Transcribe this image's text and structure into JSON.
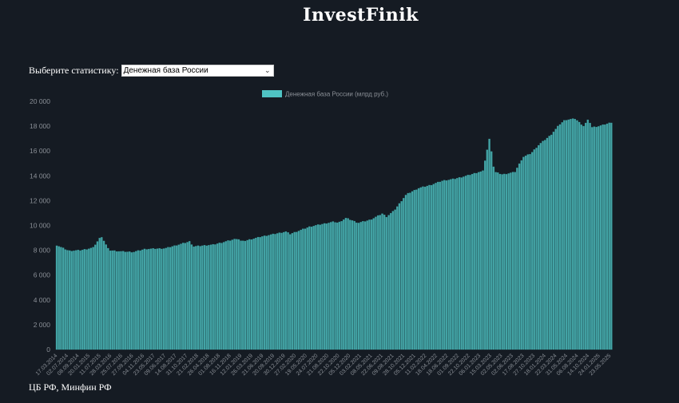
{
  "header": {
    "brand": "InvestFinik"
  },
  "selector": {
    "label": "Выберите статистику:",
    "selected": "Денежная база России"
  },
  "footer": {
    "source": "ЦБ РФ, Минфин РФ"
  },
  "colors": {
    "background": "#151b23",
    "bar": "#4fc3c3",
    "bar_edge": "#3a9e9e",
    "tick_text": "#8a8f96"
  },
  "chart_data": {
    "type": "bar",
    "title": "",
    "xlabel": "",
    "ylabel": "",
    "ylim": [
      0,
      20000
    ],
    "yticks": [
      "0",
      "2 000",
      "4 000",
      "6 000",
      "8 000",
      "10 000",
      "12 000",
      "14 000",
      "16 000",
      "18 000",
      "20 000"
    ],
    "legend": {
      "position": "top-center"
    },
    "series": [
      {
        "name": "Денежная база России (млрд руб.)",
        "points": [
          [
            "2014-03-01",
            8400
          ],
          [
            "2014-06-01",
            7950
          ],
          [
            "2014-09-01",
            8000
          ],
          [
            "2014-12-01",
            8200
          ],
          [
            "2015-02-01",
            9150
          ],
          [
            "2015-04-01",
            8000
          ],
          [
            "2015-07-01",
            7900
          ],
          [
            "2015-10-01",
            7850
          ],
          [
            "2016-01-01",
            8100
          ],
          [
            "2016-06-01",
            8150
          ],
          [
            "2016-12-01",
            8700
          ],
          [
            "2017-01-01",
            8300
          ],
          [
            "2017-06-01",
            8450
          ],
          [
            "2017-12-01",
            8950
          ],
          [
            "2018-01-01",
            8700
          ],
          [
            "2018-06-01",
            9100
          ],
          [
            "2018-12-01",
            9500
          ],
          [
            "2019-01-01",
            9300
          ],
          [
            "2019-06-01",
            9900
          ],
          [
            "2019-12-01",
            10300
          ],
          [
            "2020-01-01",
            10200
          ],
          [
            "2020-03-01",
            10600
          ],
          [
            "2020-06-01",
            10200
          ],
          [
            "2020-09-01",
            10450
          ],
          [
            "2020-12-01",
            10950
          ],
          [
            "2021-01-01",
            10700
          ],
          [
            "2021-03-01",
            11200
          ],
          [
            "2021-06-01",
            12500
          ],
          [
            "2021-09-01",
            13000
          ],
          [
            "2021-12-01",
            13250
          ],
          [
            "2022-03-01",
            13600
          ],
          [
            "2022-06-01",
            13750
          ],
          [
            "2022-09-01",
            14000
          ],
          [
            "2022-12-01",
            14300
          ],
          [
            "2023-01-01",
            14350
          ],
          [
            "2023-02-24",
            17200
          ],
          [
            "2023-03-15",
            15200
          ],
          [
            "2023-04-01",
            14300
          ],
          [
            "2023-06-01",
            14100
          ],
          [
            "2023-09-01",
            14300
          ],
          [
            "2023-11-01",
            15500
          ],
          [
            "2024-01-01",
            15800
          ],
          [
            "2024-03-01",
            16500
          ],
          [
            "2024-06-01",
            17300
          ],
          [
            "2024-08-01",
            18100
          ],
          [
            "2024-09-15",
            18500
          ],
          [
            "2024-12-01",
            18600
          ],
          [
            "2025-02-01",
            18000
          ],
          [
            "2025-03-15",
            18600
          ],
          [
            "2025-04-01",
            17900
          ],
          [
            "2025-06-01",
            18000
          ],
          [
            "2025-09-01",
            18300
          ]
        ]
      }
    ],
    "xtick_labels": [
      "17.03.2014",
      "02.07.2014",
      "08.09.2014",
      "20.01.2015",
      "11.07.2015",
      "28.03.2016",
      "25.07.2016",
      "27.09.2016",
      "04.11.2016",
      "23.05.2017",
      "09.06.2017",
      "14.08.2017",
      "31.10.2017",
      "21.02.2018",
      "26.04.2018",
      "01.08.2018",
      "16.11.2018",
      "12.01.2019",
      "26.03.2019",
      "21.06.2019",
      "20.09.2019",
      "30.12.2019",
      "27.02.2020",
      "19.05.2020",
      "24.07.2020",
      "21.08.2020",
      "22.10.2020",
      "05.12.2020",
      "03.02.2021",
      "08.05.2021",
      "22.06.2021",
      "09.08.2021",
      "28.10.2021",
      "05.12.2021",
      "11.02.2022",
      "18.04.2022",
      "18.06.2022",
      "01.09.2022",
      "22.10.2022",
      "06.01.2023",
      "15.03.2023",
      "02.05.2023",
      "02.06.2023",
      "17.08.2023",
      "27.10.2023",
      "18.01.2024",
      "22.03.2024",
      "31.05.2024",
      "06.08.2024",
      "14.10.2024",
      "24.01.2025",
      "23.05.2025"
    ]
  }
}
